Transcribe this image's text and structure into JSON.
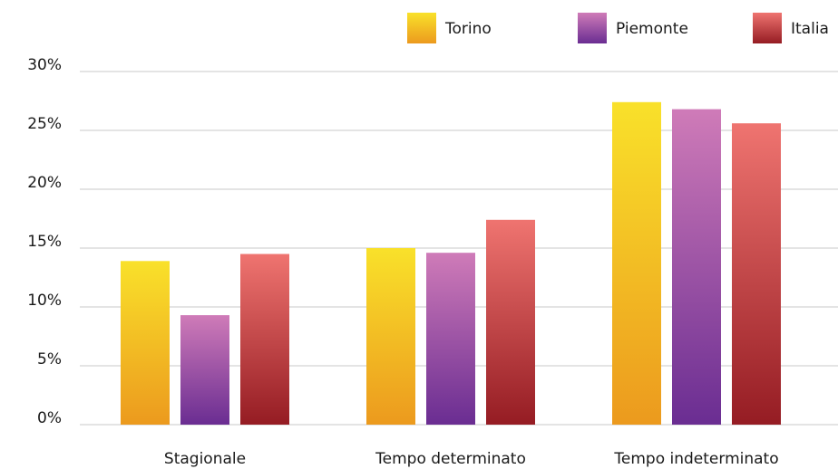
{
  "chart_data": {
    "type": "bar",
    "categories": [
      "Stagionale",
      "Tempo determinato",
      "Tempo indeterminato"
    ],
    "series": [
      {
        "name": "Torino",
        "values": [
          13.9,
          15.0,
          27.4
        ],
        "color_top": "#f9e12a",
        "color_bottom": "#ec9a1e"
      },
      {
        "name": "Piemonte",
        "values": [
          9.3,
          14.6,
          26.8
        ],
        "color_top": "#cf7bb8",
        "color_bottom": "#6a2d92"
      },
      {
        "name": "Italia",
        "values": [
          14.5,
          17.4,
          25.6
        ],
        "color_top": "#ef7470",
        "color_bottom": "#951c23"
      }
    ],
    "y_ticks": [
      "0%",
      "5%",
      "10%",
      "15%",
      "20%",
      "25%",
      "30%"
    ],
    "ylim": [
      0,
      30
    ],
    "grid": true,
    "legend_position": "top-right"
  }
}
